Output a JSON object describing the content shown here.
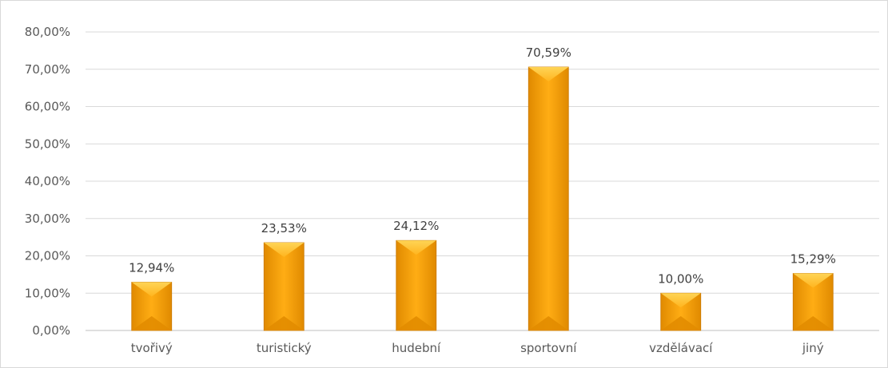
{
  "chart_data": {
    "type": "bar",
    "categories": [
      "tvořivý",
      "turistický",
      "hudební",
      "sportovní",
      "vzdělávací",
      "jiný"
    ],
    "values": [
      12.94,
      23.53,
      24.12,
      70.59,
      10.0,
      15.29
    ],
    "data_labels": [
      "12,94%",
      "23,53%",
      "24,12%",
      "70,59%",
      "10,00%",
      "15,29%"
    ],
    "y_ticks": [
      "0,00%",
      "10,00%",
      "20,00%",
      "30,00%",
      "40,00%",
      "50,00%",
      "60,00%",
      "70,00%",
      "80,00%"
    ],
    "ylim": [
      0,
      80
    ],
    "grid": true,
    "title": "",
    "xlabel": "",
    "ylabel": "",
    "colors": {
      "bar_main": "#f5a000",
      "bar_light": "#ffc83a",
      "bar_dark": "#d98200",
      "grid": "#d9d9d9",
      "axis": "#bfbfbf"
    }
  }
}
